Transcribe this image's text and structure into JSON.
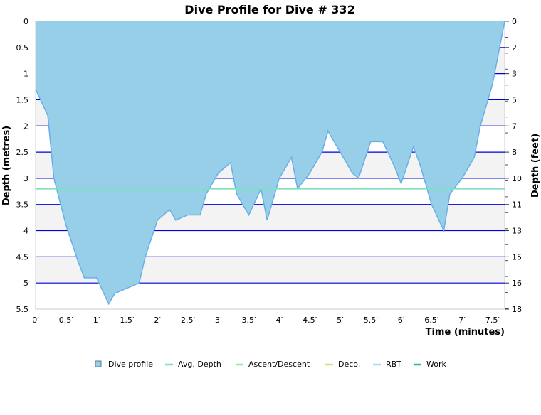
{
  "chart_data": {
    "type": "area",
    "title": "Dive Profile for Dive # 332",
    "xlabel": "Time (minutes)",
    "ylabel": "Depth (metres)",
    "ylabel_right": "Depth (feet)",
    "xlim": [
      0,
      7.7
    ],
    "ylim": [
      0,
      5.5
    ],
    "y_inverted": true,
    "x_ticks": [
      "0′",
      "0.5′",
      "1′",
      "1.5′",
      "2′",
      "2.5′",
      "3′",
      "3.5′",
      "4′",
      "4.5′",
      "5′",
      "5.5′",
      "6′",
      "6.5′",
      "7′",
      "7.5′"
    ],
    "y_ticks": [
      "0",
      "0.5",
      "1",
      "1.5",
      "2",
      "2.5",
      "3",
      "3.5",
      "4",
      "4.5",
      "5",
      "5.5"
    ],
    "y_right_ticks": [
      "0",
      "2",
      "3",
      "5",
      "7",
      "8",
      "10",
      "11",
      "13",
      "15",
      "16",
      "18"
    ],
    "grid": true,
    "legend_position": "bottom",
    "series": [
      {
        "name": "Dive profile",
        "color": "#97cfe9",
        "line_color": "#6aaee8",
        "x": [
          0,
          0.2,
          0.3,
          0.5,
          0.7,
          0.8,
          1.0,
          1.2,
          1.3,
          1.5,
          1.7,
          1.8,
          2.0,
          2.2,
          2.3,
          2.5,
          2.7,
          2.8,
          3.0,
          3.2,
          3.3,
          3.5,
          3.7,
          3.8,
          4.0,
          4.2,
          4.3,
          4.5,
          4.7,
          4.8,
          5.0,
          5.2,
          5.3,
          5.5,
          5.7,
          5.9,
          6.0,
          6.2,
          6.3,
          6.5,
          6.7,
          6.8,
          7.0,
          7.2,
          7.3,
          7.5,
          7.7
        ],
        "y": [
          1.3,
          1.8,
          3.0,
          3.9,
          4.6,
          4.9,
          4.9,
          5.4,
          5.2,
          5.1,
          5.0,
          4.5,
          3.8,
          3.6,
          3.8,
          3.7,
          3.7,
          3.3,
          2.9,
          2.7,
          3.3,
          3.7,
          3.2,
          3.8,
          3.0,
          2.6,
          3.2,
          2.9,
          2.5,
          2.1,
          2.5,
          2.9,
          3.0,
          2.3,
          2.3,
          2.8,
          3.1,
          2.4,
          2.7,
          3.5,
          4.0,
          3.3,
          3.0,
          2.6,
          2.0,
          1.2,
          0
        ]
      },
      {
        "name": "Avg. Depth",
        "color": "#7fe0c0",
        "value": 3.2
      },
      {
        "name": "Ascent/Descent",
        "color": "#99e699"
      },
      {
        "name": "Deco.",
        "color": "#d9e07a"
      },
      {
        "name": "RBT",
        "color": "#a0dcf5"
      },
      {
        "name": "Work",
        "color": "#33b58a"
      }
    ]
  }
}
